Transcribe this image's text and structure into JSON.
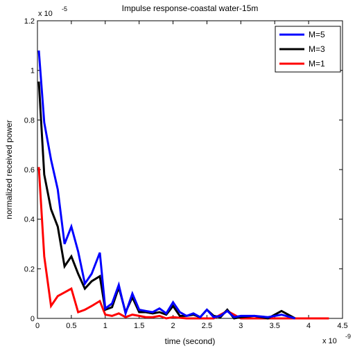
{
  "chart_data": {
    "type": "line",
    "title": "Impulse response-coastal water-15m",
    "xlabel": "time (second)",
    "ylabel": "normalized received power",
    "x_multiplier_label": {
      "base": "x 10",
      "exp": "-9"
    },
    "y_multiplier_label": {
      "base": "x 10",
      "exp": "-5"
    },
    "xlim": [
      0,
      4.5
    ],
    "ylim": [
      0,
      1.2
    ],
    "x_ticks": [
      0,
      0.5,
      1,
      1.5,
      2,
      2.5,
      3,
      3.5,
      4,
      4.5
    ],
    "x_tick_labels": [
      "0",
      "0.5",
      "1",
      "1.5",
      "2",
      "2.5",
      "3",
      "3.5",
      "4",
      "4.5"
    ],
    "y_ticks": [
      0,
      0.2,
      0.4,
      0.6,
      0.8,
      1,
      1.2
    ],
    "y_tick_labels": [
      "0",
      "0.2",
      "0.4",
      "0.6",
      "0.8",
      "1",
      "1.2"
    ],
    "grid": false,
    "legend_position": "top-right",
    "series": [
      {
        "name": "M=5",
        "color": "#0000ff",
        "x": [
          0.02,
          0.1,
          0.2,
          0.3,
          0.4,
          0.5,
          0.6,
          0.7,
          0.8,
          0.92,
          1.0,
          1.1,
          1.2,
          1.3,
          1.4,
          1.5,
          1.6,
          1.7,
          1.8,
          1.9,
          2.0,
          2.1,
          2.2,
          2.3,
          2.4,
          2.5,
          2.6,
          2.7,
          2.8,
          2.9,
          3.0,
          3.2,
          3.4,
          3.6,
          3.8
        ],
        "y": [
          1.08,
          0.79,
          0.64,
          0.52,
          0.3,
          0.37,
          0.27,
          0.14,
          0.18,
          0.265,
          0.04,
          0.06,
          0.135,
          0.02,
          0.1,
          0.035,
          0.03,
          0.025,
          0.04,
          0.02,
          0.065,
          0.025,
          0.01,
          0.02,
          0.005,
          0.035,
          0.005,
          0.01,
          0.03,
          0.005,
          0.01,
          0.01,
          0.005,
          0.015,
          0.0
        ]
      },
      {
        "name": "M=3",
        "color": "#000000",
        "x": [
          0.02,
          0.1,
          0.2,
          0.3,
          0.4,
          0.5,
          0.6,
          0.7,
          0.8,
          0.92,
          1.0,
          1.1,
          1.2,
          1.3,
          1.4,
          1.5,
          1.6,
          1.7,
          1.8,
          1.9,
          2.0,
          2.1,
          2.2,
          2.3,
          2.4,
          2.5,
          2.6,
          2.7,
          2.8,
          2.9,
          3.0,
          3.2,
          3.4,
          3.6,
          3.8
        ],
        "y": [
          0.955,
          0.58,
          0.44,
          0.37,
          0.21,
          0.25,
          0.18,
          0.12,
          0.15,
          0.17,
          0.035,
          0.045,
          0.125,
          0.025,
          0.085,
          0.025,
          0.025,
          0.02,
          0.025,
          0.015,
          0.05,
          0.01,
          0.01,
          0.015,
          0.005,
          0.035,
          0.01,
          0.005,
          0.035,
          0.0,
          0.005,
          0.01,
          0.0,
          0.03,
          0.0
        ]
      },
      {
        "name": "M=1",
        "color": "#ff0000",
        "x": [
          0.02,
          0.1,
          0.2,
          0.3,
          0.4,
          0.5,
          0.6,
          0.7,
          0.8,
          0.92,
          1.0,
          1.1,
          1.2,
          1.3,
          1.4,
          1.5,
          1.6,
          1.7,
          1.8,
          1.9,
          2.0,
          2.2,
          2.4,
          2.6,
          2.8,
          3.0,
          3.2,
          3.4,
          3.6,
          3.8,
          4.0,
          4.3
        ],
        "y": [
          0.61,
          0.25,
          0.05,
          0.09,
          0.105,
          0.12,
          0.025,
          0.035,
          0.05,
          0.07,
          0.015,
          0.01,
          0.02,
          0.005,
          0.015,
          0.01,
          0.005,
          0.005,
          0.01,
          0.0,
          0.005,
          0.0,
          0.0,
          0.0,
          0.03,
          0.0,
          0.0,
          0.0,
          0.0,
          0.0,
          0.0,
          0.0
        ]
      }
    ]
  }
}
